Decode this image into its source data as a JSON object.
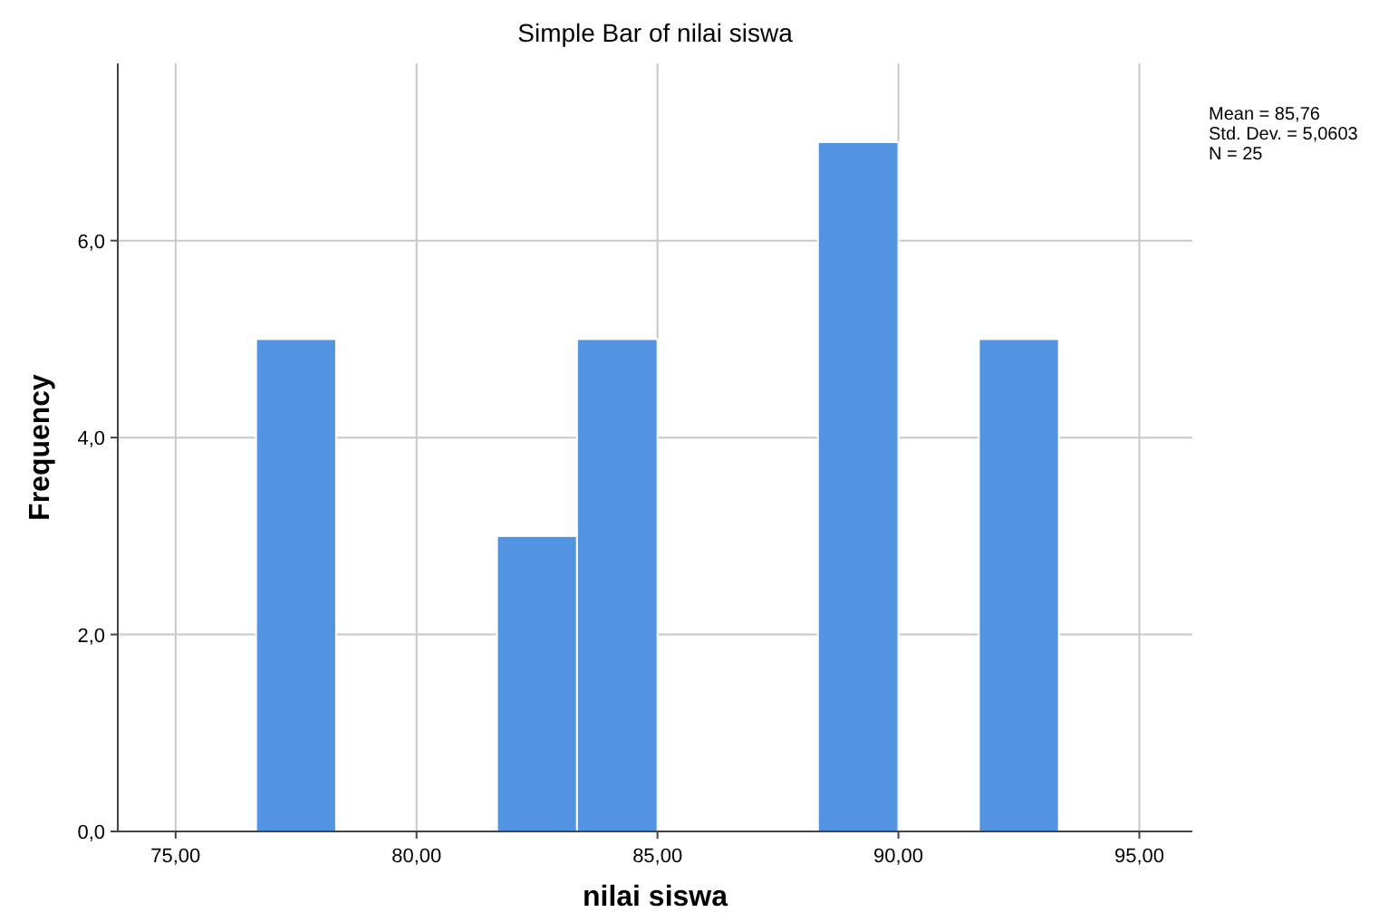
{
  "chart_data": {
    "type": "histogram",
    "title": "Simple Bar of nilai siswa",
    "xlabel": "nilai siswa",
    "ylabel": "Frequency",
    "bins": [
      76.67,
      78.33,
      81.67,
      83.33,
      85,
      88.33,
      90,
      91.67,
      93.33
    ],
    "values": [
      5,
      0,
      3,
      5,
      0,
      7,
      0,
      5
    ],
    "color": "#5294e2",
    "xlim": [
      73.8,
      96.1
    ],
    "xticks": [
      {
        "value": 75,
        "label": "75,00"
      },
      {
        "value": 80,
        "label": "80,00"
      },
      {
        "value": 85,
        "label": "85,00"
      },
      {
        "value": 90,
        "label": "90,00"
      },
      {
        "value": 95,
        "label": "95,00"
      }
    ],
    "ylim": [
      0,
      7.8
    ],
    "yticks": [
      {
        "value": 0,
        "label": "0,0"
      },
      {
        "value": 2,
        "label": "2,0"
      },
      {
        "value": 4,
        "label": "4,0"
      },
      {
        "value": 6,
        "label": "6,0"
      }
    ],
    "grid": true,
    "annotations": [
      "Mean = 85,76",
      "Std. Dev. = 5,0603",
      "N = 25"
    ]
  }
}
